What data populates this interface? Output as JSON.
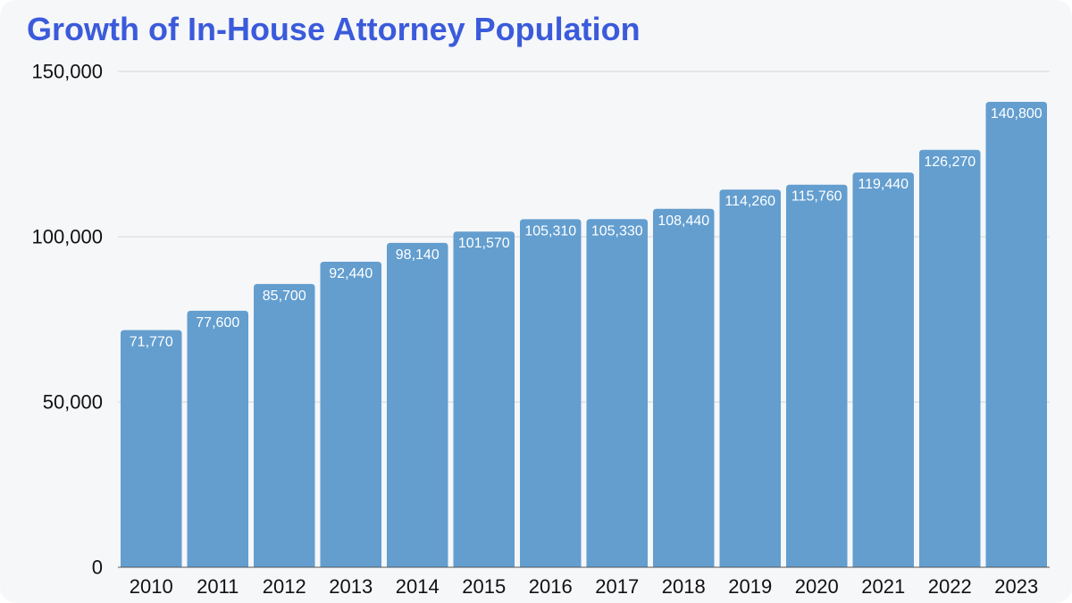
{
  "chart_data": {
    "type": "bar",
    "title": "Growth of In-House Attorney Population",
    "xlabel": "",
    "ylabel": "",
    "categories": [
      "2010",
      "2011",
      "2012",
      "2013",
      "2014",
      "2015",
      "2016",
      "2017",
      "2018",
      "2019",
      "2020",
      "2021",
      "2022",
      "2023"
    ],
    "values": [
      71770,
      77600,
      85700,
      92440,
      98140,
      101570,
      105310,
      105330,
      108440,
      114260,
      115760,
      119440,
      126270,
      140800
    ],
    "data_labels": [
      "71,770",
      "77,600",
      "85,700",
      "92,440",
      "98,140",
      "101,570",
      "105,310",
      "105,330",
      "108,440",
      "114,260",
      "115,760",
      "119,440",
      "126,270",
      "140,800"
    ],
    "ylim": [
      0,
      150000
    ],
    "y_ticks": [
      0,
      50000,
      100000,
      150000
    ],
    "y_tick_labels": [
      "0",
      "50,000",
      "100,000",
      "150,000"
    ],
    "grid": true,
    "legend": "none",
    "colors": {
      "bar": "#639ecf",
      "title": "#3b5bdb",
      "grid": "#d4d4d4",
      "background": "#f6f7f9"
    }
  }
}
